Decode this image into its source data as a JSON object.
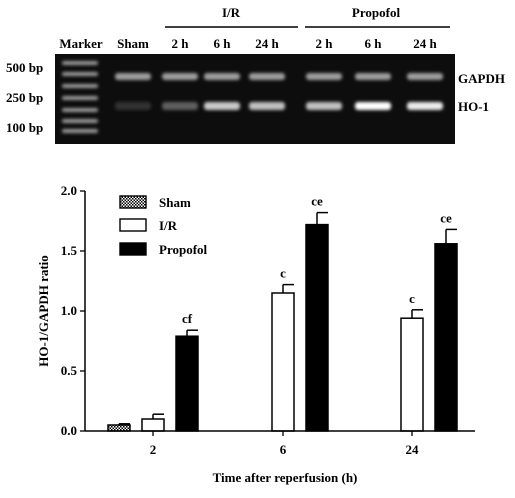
{
  "gel": {
    "header_groups": [
      {
        "label": "I/R"
      },
      {
        "label": "Propofol"
      }
    ],
    "lane_labels": [
      "Marker",
      "Sham",
      "2 h",
      "6 h",
      "24 h",
      "2 h",
      "6 h",
      "24 h"
    ],
    "marker_labels": [
      "500 bp",
      "250 bp",
      "100 bp"
    ],
    "band_labels": [
      "GAPDH",
      "HO-1"
    ],
    "gapdh_intensity": [
      0.5,
      0.55,
      0.55,
      0.55,
      0.55,
      0.55,
      0.55,
      0.55
    ],
    "ho1_intensity": [
      0.15,
      0.05,
      0.25,
      0.75,
      0.7,
      0.7,
      1.0,
      0.9
    ]
  },
  "chart_data": {
    "type": "bar",
    "xlabel": "Time after reperfusion (h)",
    "ylabel": "HO-1/GAPDH ratio",
    "ylim": [
      0,
      2.0
    ],
    "yticks": [
      "0.0",
      "0.5",
      "1.0",
      "1.5",
      "2.0"
    ],
    "categories": [
      "2",
      "6",
      "24"
    ],
    "legend_position": "top-left",
    "series": [
      {
        "name": "Sham",
        "fill": "checker",
        "values": [
          0.05,
          null,
          null
        ],
        "errors": [
          0.01,
          null,
          null
        ],
        "labels": [
          "",
          "",
          ""
        ]
      },
      {
        "name": "I/R",
        "fill": "white",
        "values": [
          0.1,
          1.15,
          0.94
        ],
        "errors": [
          0.04,
          0.07,
          0.07
        ],
        "labels": [
          "",
          "c",
          "c"
        ]
      },
      {
        "name": "Propofol",
        "fill": "black",
        "values": [
          0.79,
          1.72,
          1.56
        ],
        "errors": [
          0.05,
          0.1,
          0.12
        ],
        "labels": [
          "cf",
          "ce",
          "ce"
        ]
      }
    ]
  }
}
